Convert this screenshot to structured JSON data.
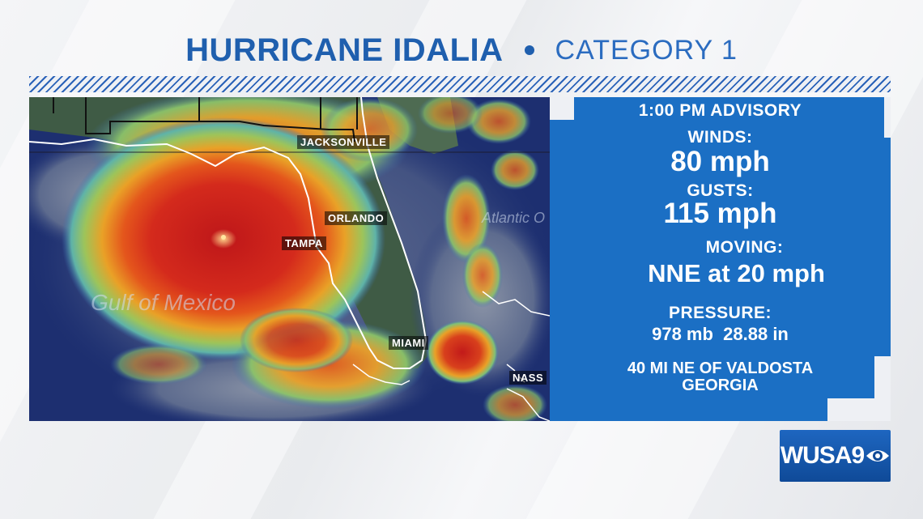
{
  "header": {
    "title": "HURRICANE IDALIA",
    "category": "CATEGORY 1"
  },
  "map": {
    "cities": {
      "jacksonville": "JACKSONVILLE",
      "orlando": "ORLANDO",
      "tampa": "TAMPA",
      "miami": "MIAMI",
      "nassau": "NASS"
    },
    "water": {
      "gulf": "Gulf of Mexico",
      "atlantic": "Atlantic O"
    }
  },
  "advisory": {
    "time": "1:00 PM ADVISORY",
    "winds_label": "WINDS:",
    "winds_value": "80 mph",
    "gusts_label": "GUSTS:",
    "gusts_value": "115 mph",
    "moving_label": "MOVING:",
    "moving_value": "NNE at 20 mph",
    "pressure_label": "PRESSURE:",
    "pressure_value": "978 mb  28.88 in",
    "location_line1": "40 MI NE OF VALDOSTA",
    "location_line2": "GEORGIA"
  },
  "logo": {
    "text": "WUSA9",
    "icon": "cbs-eye-icon"
  },
  "colors": {
    "title_blue": "#1f5fae",
    "panel_blue": "#1b6fc4",
    "storm_red": "#c81e1e",
    "ocean_dark": "#1b2d6b"
  }
}
